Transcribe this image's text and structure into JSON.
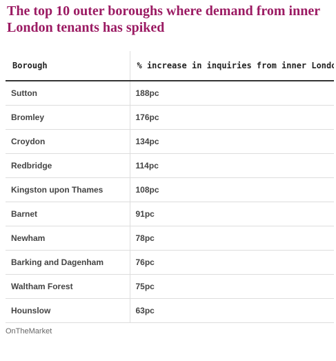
{
  "title": "The top 10 outer boroughs where demand from inner London tenants has spiked",
  "table": {
    "headers": [
      "Borough",
      "% increase in inquiries from inner London"
    ],
    "rows": [
      [
        "Sutton",
        "188pc"
      ],
      [
        "Bromley",
        "176pc"
      ],
      [
        "Croydon",
        "134pc"
      ],
      [
        "Redbridge",
        "114pc"
      ],
      [
        "Kingston upon Thames",
        "108pc"
      ],
      [
        "Barnet",
        "91pc"
      ],
      [
        "Newham",
        "78pc"
      ],
      [
        "Barking and Dagenham",
        "76pc"
      ],
      [
        "Waltham Forest",
        "75pc"
      ],
      [
        "Hounslow",
        "63pc"
      ]
    ]
  },
  "source": "OnTheMarket"
}
